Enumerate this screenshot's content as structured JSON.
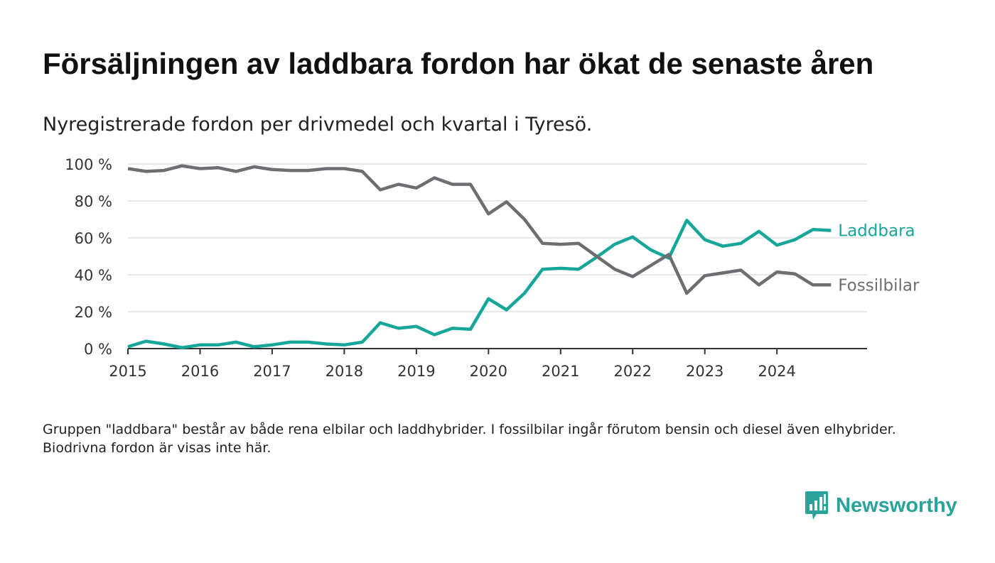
{
  "header": {
    "title": "Försäljningen av laddbara fordon har ökat de senaste åren",
    "subtitle": "Nyregistrerade fordon per drivmedel och kvartal i Tyresö."
  },
  "footnote": "Gruppen \"laddbara\" består av både rena elbilar och laddhybrider. I fossilbilar ingår förutom bensin och diesel även elhybrider. Biodrivna fordon är visas inte här.",
  "logo": {
    "text": "Newsworthy",
    "icon": "newsworthy-logo-icon"
  },
  "colors": {
    "laddbara": "#16a69a",
    "fossil": "#6e6e72",
    "grid": "#d9d9d9",
    "axis": "#333333",
    "brand": "#2aa39a"
  },
  "chart_data": {
    "type": "line",
    "title": "Försäljningen av laddbara fordon har ökat de senaste åren",
    "subtitle": "Nyregistrerade fordon per drivmedel och kvartal i Tyresö.",
    "xlabel": "",
    "ylabel": "",
    "x_start": 2015,
    "x_step": 0.25,
    "xlim": [
      2015,
      2025.25
    ],
    "ylim": [
      0,
      100
    ],
    "x_ticks": [
      "2015",
      "2016",
      "2017",
      "2018",
      "2019",
      "2020",
      "2021",
      "2022",
      "2023",
      "2024"
    ],
    "y_ticks": [
      "0 %",
      "20 %",
      "40 %",
      "60 %",
      "80 %",
      "100 %"
    ],
    "y_tick_values": [
      0,
      20,
      40,
      60,
      80,
      100
    ],
    "grid": true,
    "legend": "end-of-line labels",
    "series": [
      {
        "name": "Laddbara",
        "color": "#16a69a",
        "values": [
          1,
          4,
          2.5,
          0.5,
          2,
          2,
          3.5,
          1,
          2,
          3.5,
          3.5,
          2.5,
          2,
          3.5,
          14,
          11,
          12,
          7.5,
          11,
          10.5,
          27,
          21,
          30,
          43,
          43.5,
          43,
          49.5,
          56.5,
          60.5,
          53.5,
          49,
          69.5,
          59,
          55.5,
          57,
          63.5,
          56,
          59,
          64.5,
          64
        ]
      },
      {
        "name": "Fossilbilar",
        "color": "#6e6e72",
        "values": [
          97.5,
          96,
          96.5,
          99,
          97.5,
          98,
          96,
          98.5,
          97,
          96.5,
          96.5,
          97.5,
          97.5,
          96,
          86,
          89,
          87,
          92.5,
          89,
          89,
          73,
          79.5,
          70,
          57,
          56.5,
          57,
          50,
          43,
          39,
          45,
          51,
          30,
          39.5,
          41,
          42.5,
          34.5,
          41.5,
          40.5,
          34.5,
          34.5
        ]
      }
    ]
  }
}
